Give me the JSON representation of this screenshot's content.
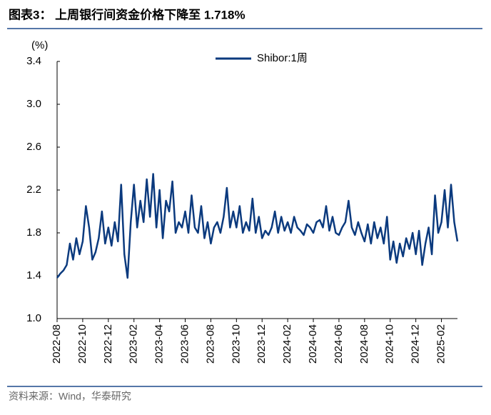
{
  "title": "图表3： 上周银行间资金价格下降至 1.718%",
  "source": "资料来源：Wind，华泰研究",
  "chart_data": {
    "type": "line",
    "ylabel": "(%)",
    "x": [
      "2022-08",
      "2022-08",
      "2022-08",
      "2022-08",
      "2022-09",
      "2022-09",
      "2022-09",
      "2022-09",
      "2022-10",
      "2022-10",
      "2022-10",
      "2022-10",
      "2022-11",
      "2022-11",
      "2022-11",
      "2022-11",
      "2022-12",
      "2022-12",
      "2022-12",
      "2022-12",
      "2023-01",
      "2023-01",
      "2023-01",
      "2023-01",
      "2023-02",
      "2023-02",
      "2023-02",
      "2023-02",
      "2023-03",
      "2023-03",
      "2023-03",
      "2023-03",
      "2023-04",
      "2023-04",
      "2023-04",
      "2023-04",
      "2023-05",
      "2023-05",
      "2023-05",
      "2023-05",
      "2023-06",
      "2023-06",
      "2023-06",
      "2023-06",
      "2023-07",
      "2023-07",
      "2023-07",
      "2023-07",
      "2023-08",
      "2023-08",
      "2023-08",
      "2023-08",
      "2023-09",
      "2023-09",
      "2023-09",
      "2023-09",
      "2023-10",
      "2023-10",
      "2023-10",
      "2023-10",
      "2023-11",
      "2023-11",
      "2023-11",
      "2023-11",
      "2023-12",
      "2023-12",
      "2023-12",
      "2023-12",
      "2024-01",
      "2024-01",
      "2024-01",
      "2024-01",
      "2024-02",
      "2024-02",
      "2024-02",
      "2024-02",
      "2024-03",
      "2024-03",
      "2024-03",
      "2024-03",
      "2024-04",
      "2024-04",
      "2024-04",
      "2024-04",
      "2024-05",
      "2024-05",
      "2024-05",
      "2024-05",
      "2024-06",
      "2024-06",
      "2024-06",
      "2024-06",
      "2024-07",
      "2024-07",
      "2024-07",
      "2024-07",
      "2024-08",
      "2024-08",
      "2024-08",
      "2024-08",
      "2024-09",
      "2024-09",
      "2024-09",
      "2024-09",
      "2024-10",
      "2024-10",
      "2024-10",
      "2024-10",
      "2024-11",
      "2024-11",
      "2024-11",
      "2024-11",
      "2024-12",
      "2024-12",
      "2024-12",
      "2024-12",
      "2025-01",
      "2025-01",
      "2025-01",
      "2025-01",
      "2025-02",
      "2025-02",
      "2025-02",
      "2025-02",
      "2025-03",
      "2025-03"
    ],
    "series": [
      {
        "name": "Shibor:1周",
        "color": "#0b3a7e",
        "values": [
          1.38,
          1.42,
          1.45,
          1.5,
          1.7,
          1.55,
          1.75,
          1.6,
          1.72,
          2.05,
          1.85,
          1.55,
          1.62,
          1.75,
          2.0,
          1.7,
          1.85,
          1.68,
          1.9,
          1.72,
          2.25,
          1.6,
          1.38,
          1.9,
          2.25,
          1.85,
          2.1,
          1.9,
          2.3,
          1.95,
          2.35,
          1.85,
          2.2,
          1.75,
          2.1,
          2.0,
          2.28,
          1.8,
          1.9,
          1.85,
          2.0,
          1.8,
          2.15,
          1.85,
          1.8,
          2.05,
          1.75,
          1.9,
          1.7,
          1.85,
          1.9,
          1.8,
          1.95,
          2.22,
          1.85,
          2.0,
          1.85,
          2.05,
          1.8,
          1.9,
          1.82,
          2.12,
          1.8,
          1.95,
          1.75,
          1.82,
          1.78,
          1.85,
          2.0,
          1.8,
          1.95,
          1.82,
          1.9,
          1.8,
          1.95,
          1.85,
          1.82,
          1.78,
          1.88,
          1.85,
          1.8,
          1.9,
          1.92,
          1.85,
          2.05,
          1.82,
          1.95,
          1.8,
          1.78,
          1.85,
          1.9,
          2.1,
          1.85,
          1.78,
          1.9,
          1.8,
          1.72,
          1.88,
          1.7,
          1.9,
          1.75,
          1.85,
          1.7,
          1.95,
          1.55,
          1.72,
          1.52,
          1.7,
          1.58,
          1.75,
          1.65,
          1.8,
          1.6,
          1.82,
          1.5,
          1.7,
          1.85,
          1.6,
          2.15,
          1.8,
          1.9,
          2.2,
          1.85,
          2.25,
          1.9,
          1.72
        ]
      }
    ],
    "xticks": [
      "2022-08",
      "2022-10",
      "2022-12",
      "2023-02",
      "2023-04",
      "2023-06",
      "2023-08",
      "2023-10",
      "2023-12",
      "2024-02",
      "2024-04",
      "2024-06",
      "2024-08",
      "2024-10",
      "2024-12",
      "2025-02"
    ],
    "ylim": [
      1.0,
      3.4
    ],
    "yticks": [
      {
        "value": 1.0,
        "label": "1.0"
      },
      1.4,
      1.8,
      2.2,
      2.6,
      {
        "value": 3.0,
        "label": "3.0"
      },
      3.4
    ],
    "legend": "top"
  }
}
